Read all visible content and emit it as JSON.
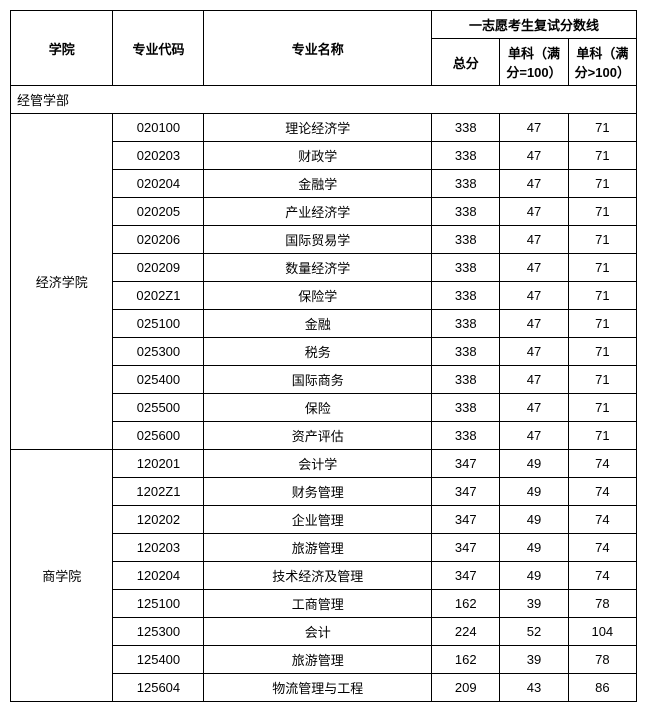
{
  "headers": {
    "college": "学院",
    "code": "专业代码",
    "major": "专业名称",
    "score_group": "一志愿考生复试分数线",
    "total": "总分",
    "sub_le100": "单科（满分=100）",
    "sub_gt100": "单科（满分>100）"
  },
  "section": {
    "department": "经管学部"
  },
  "colleges": [
    {
      "name": "经济学院",
      "rows": [
        {
          "code": "020100",
          "major": "理论经济学",
          "total": "338",
          "s1": "47",
          "s2": "71"
        },
        {
          "code": "020203",
          "major": "财政学",
          "total": "338",
          "s1": "47",
          "s2": "71"
        },
        {
          "code": "020204",
          "major": "金融学",
          "total": "338",
          "s1": "47",
          "s2": "71"
        },
        {
          "code": "020205",
          "major": "产业经济学",
          "total": "338",
          "s1": "47",
          "s2": "71"
        },
        {
          "code": "020206",
          "major": "国际贸易学",
          "total": "338",
          "s1": "47",
          "s2": "71"
        },
        {
          "code": "020209",
          "major": "数量经济学",
          "total": "338",
          "s1": "47",
          "s2": "71"
        },
        {
          "code": "0202Z1",
          "major": "保险学",
          "total": "338",
          "s1": "47",
          "s2": "71"
        },
        {
          "code": "025100",
          "major": "金融",
          "total": "338",
          "s1": "47",
          "s2": "71"
        },
        {
          "code": "025300",
          "major": "税务",
          "total": "338",
          "s1": "47",
          "s2": "71"
        },
        {
          "code": "025400",
          "major": "国际商务",
          "total": "338",
          "s1": "47",
          "s2": "71"
        },
        {
          "code": "025500",
          "major": "保险",
          "total": "338",
          "s1": "47",
          "s2": "71"
        },
        {
          "code": "025600",
          "major": "资产评估",
          "total": "338",
          "s1": "47",
          "s2": "71"
        }
      ]
    },
    {
      "name": "商学院",
      "rows": [
        {
          "code": "120201",
          "major": "会计学",
          "total": "347",
          "s1": "49",
          "s2": "74"
        },
        {
          "code": "1202Z1",
          "major": "财务管理",
          "total": "347",
          "s1": "49",
          "s2": "74"
        },
        {
          "code": "120202",
          "major": "企业管理",
          "total": "347",
          "s1": "49",
          "s2": "74"
        },
        {
          "code": "120203",
          "major": "旅游管理",
          "total": "347",
          "s1": "49",
          "s2": "74"
        },
        {
          "code": "120204",
          "major": "技术经济及管理",
          "total": "347",
          "s1": "49",
          "s2": "74"
        },
        {
          "code": "125100",
          "major": "工商管理",
          "total": "162",
          "s1": "39",
          "s2": "78"
        },
        {
          "code": "125300",
          "major": "会计",
          "total": "224",
          "s1": "52",
          "s2": "104"
        },
        {
          "code": "125400",
          "major": "旅游管理",
          "total": "162",
          "s1": "39",
          "s2": "78"
        },
        {
          "code": "125604",
          "major": "物流管理与工程",
          "total": "209",
          "s1": "43",
          "s2": "86"
        }
      ]
    }
  ]
}
